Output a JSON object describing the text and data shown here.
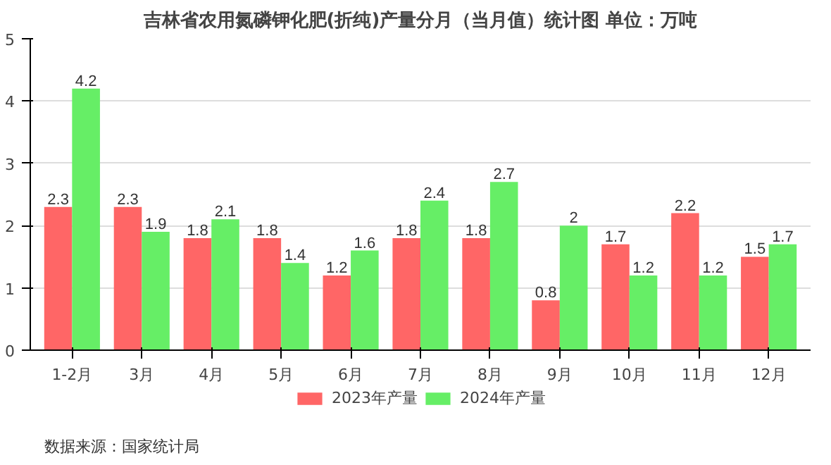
{
  "chart_data": {
    "type": "bar",
    "title": "吉林省农用氮磷钾化肥(折纯)产量分月（当月值）统计图 单位：万吨",
    "categories": [
      "1-2月",
      "3月",
      "4月",
      "5月",
      "6月",
      "7月",
      "8月",
      "9月",
      "10月",
      "11月",
      "12月"
    ],
    "series": [
      {
        "name": "2023年产量",
        "color": "#ff6666",
        "values": [
          2.3,
          2.3,
          1.8,
          1.8,
          1.2,
          1.8,
          1.8,
          0.8,
          1.7,
          2.2,
          1.5
        ]
      },
      {
        "name": "2024年产量",
        "color": "#66ee66",
        "values": [
          4.2,
          1.9,
          2.1,
          1.4,
          1.6,
          2.4,
          2.7,
          2,
          1.2,
          1.2,
          1.7
        ]
      }
    ],
    "ylim": [
      0,
      5
    ],
    "yticks": [
      0,
      1,
      2,
      3,
      4,
      5
    ],
    "grid": "y",
    "legend": "bottom",
    "data_labels": true,
    "annotations": [
      "数据来源：国家统计局"
    ]
  }
}
